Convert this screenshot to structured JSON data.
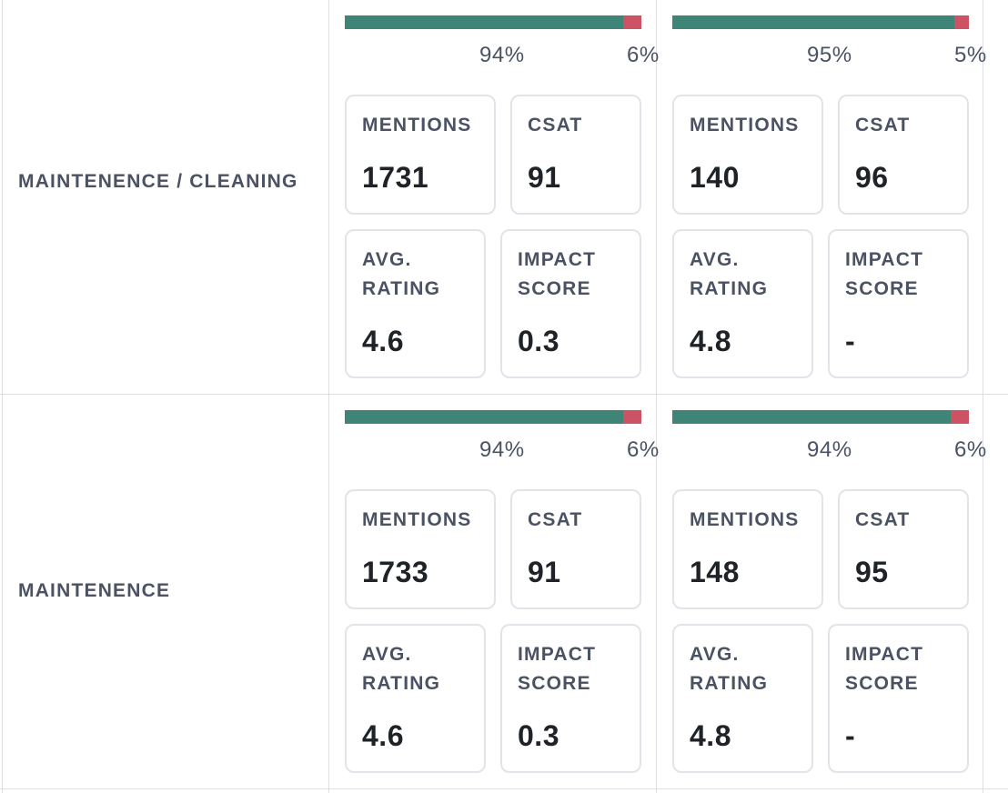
{
  "rows": [
    {
      "label": "MAINTENENCE / CLEANING",
      "cells": [
        {
          "positive_pct": 94,
          "negative_pct": 6,
          "positive_label": "94%",
          "negative_label": "6%",
          "mentions_label": "MENTIONS",
          "mentions": "1731",
          "csat_label": "CSAT",
          "csat": "91",
          "avg_label": "AVG. RATING",
          "avg_rating": "4.6",
          "impact_label": "IMPACT SCORE",
          "impact_score": "0.3"
        },
        {
          "positive_pct": 95,
          "negative_pct": 5,
          "positive_label": "95%",
          "negative_label": "5%",
          "mentions_label": "MENTIONS",
          "mentions": "140",
          "csat_label": "CSAT",
          "csat": "96",
          "avg_label": "AVG. RATING",
          "avg_rating": "4.8",
          "impact_label": "IMPACT SCORE",
          "impact_score": "-"
        }
      ]
    },
    {
      "label": "MAINTENENCE",
      "cells": [
        {
          "positive_pct": 94,
          "negative_pct": 6,
          "positive_label": "94%",
          "negative_label": "6%",
          "mentions_label": "MENTIONS",
          "mentions": "1733",
          "csat_label": "CSAT",
          "csat": "91",
          "avg_label": "AVG. RATING",
          "avg_rating": "4.6",
          "impact_label": "IMPACT SCORE",
          "impact_score": "0.3"
        },
        {
          "positive_pct": 94,
          "negative_pct": 6,
          "positive_label": "94%",
          "negative_label": "6%",
          "mentions_label": "MENTIONS",
          "mentions": "148",
          "csat_label": "CSAT",
          "csat": "95",
          "avg_label": "AVG. RATING",
          "avg_rating": "4.8",
          "impact_label": "IMPACT SCORE",
          "impact_score": "-"
        }
      ]
    }
  ],
  "colors": {
    "positive": "#3e8577",
    "negative": "#cc5264",
    "border": "#e1e4e8",
    "label": "#4a5263",
    "value": "#1f2328"
  }
}
